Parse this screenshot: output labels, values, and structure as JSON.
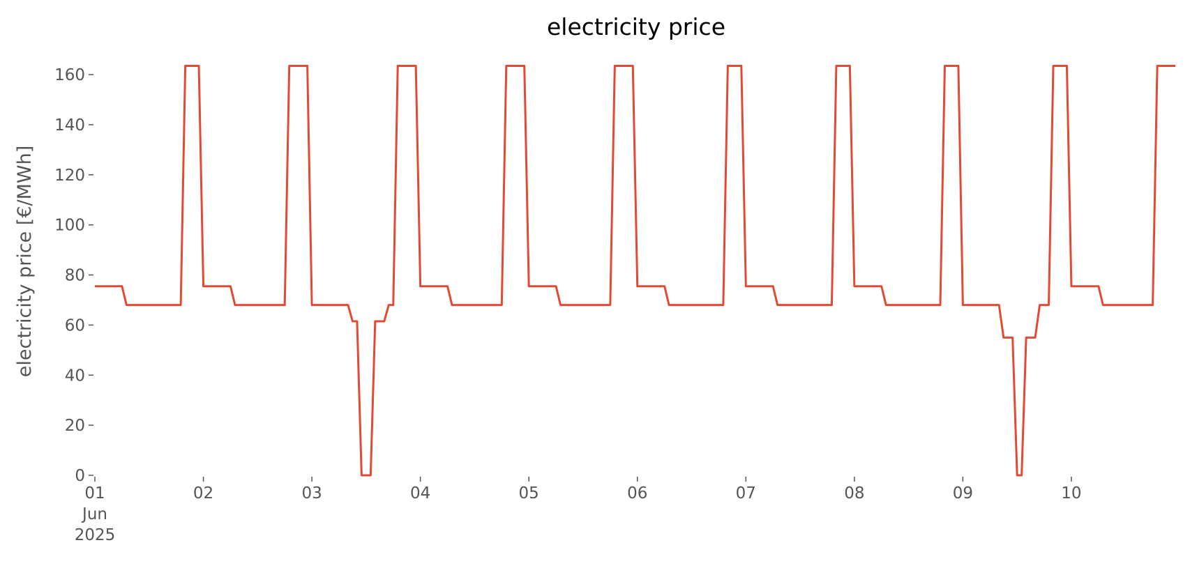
{
  "chart_data": {
    "type": "line",
    "title": "electricity price",
    "ylabel": "electricity price [€/MWh]",
    "color": "#e24a33",
    "values": [
      75.5,
      75.5,
      75.5,
      75.5,
      75.5,
      75.5,
      75.5,
      68,
      68,
      68,
      68,
      68,
      68,
      68,
      68,
      68,
      68,
      68,
      68,
      68,
      163.5,
      163.5,
      163.5,
      163.5,
      75.5,
      75.5,
      75.5,
      75.5,
      75.5,
      75.5,
      75.5,
      68,
      68,
      68,
      68,
      68,
      68,
      68,
      68,
      68,
      68,
      68,
      68,
      163.5,
      163.5,
      163.5,
      163.5,
      163.5,
      68,
      68,
      68,
      68,
      68,
      68,
      68,
      68,
      68,
      61.5,
      61.5,
      0,
      0,
      0,
      61.5,
      61.5,
      61.5,
      68,
      68,
      163.5,
      163.5,
      163.5,
      163.5,
      163.5,
      75.5,
      75.5,
      75.5,
      75.5,
      75.5,
      75.5,
      75.5,
      68,
      68,
      68,
      68,
      68,
      68,
      68,
      68,
      68,
      68,
      68,
      68,
      163.5,
      163.5,
      163.5,
      163.5,
      163.5,
      75.5,
      75.5,
      75.5,
      75.5,
      75.5,
      75.5,
      75.5,
      68,
      68,
      68,
      68,
      68,
      68,
      68,
      68,
      68,
      68,
      68,
      68,
      163.5,
      163.5,
      163.5,
      163.5,
      163.5,
      75.5,
      75.5,
      75.5,
      75.5,
      75.5,
      75.5,
      75.5,
      68,
      68,
      68,
      68,
      68,
      68,
      68,
      68,
      68,
      68,
      68,
      68,
      68,
      163.5,
      163.5,
      163.5,
      163.5,
      75.5,
      75.5,
      75.5,
      75.5,
      75.5,
      75.5,
      75.5,
      68,
      68,
      68,
      68,
      68,
      68,
      68,
      68,
      68,
      68,
      68,
      68,
      68,
      163.5,
      163.5,
      163.5,
      163.5,
      75.5,
      75.5,
      75.5,
      75.5,
      75.5,
      75.5,
      75.5,
      68,
      68,
      68,
      68,
      68,
      68,
      68,
      68,
      68,
      68,
      68,
      68,
      68,
      163.5,
      163.5,
      163.5,
      163.5,
      68,
      68,
      68,
      68,
      68,
      68,
      68,
      68,
      68,
      55,
      55,
      55,
      0,
      0,
      55,
      55,
      55,
      68,
      68,
      68,
      163.5,
      163.5,
      163.5,
      163.5,
      75.5,
      75.5,
      75.5,
      75.5,
      75.5,
      75.5,
      75.5,
      68,
      68,
      68,
      68,
      68,
      68,
      68,
      68,
      68,
      68,
      68,
      68,
      163.5,
      163.5,
      163.5,
      163.5,
      163.5
    ],
    "xlim": [
      0,
      239
    ],
    "xticks": [
      {
        "value": 0,
        "label": "01\nJun\n2025"
      },
      {
        "value": 24,
        "label": "02"
      },
      {
        "value": 48,
        "label": "03"
      },
      {
        "value": 72,
        "label": "04"
      },
      {
        "value": 96,
        "label": "05"
      },
      {
        "value": 120,
        "label": "06"
      },
      {
        "value": 144,
        "label": "07"
      },
      {
        "value": 168,
        "label": "08"
      },
      {
        "value": 192,
        "label": "09"
      },
      {
        "value": 216,
        "label": "10"
      }
    ],
    "ylim": [
      0,
      171.7
    ],
    "yticks": [
      0,
      20,
      40,
      60,
      80,
      100,
      120,
      140,
      160
    ],
    "grid": false
  }
}
